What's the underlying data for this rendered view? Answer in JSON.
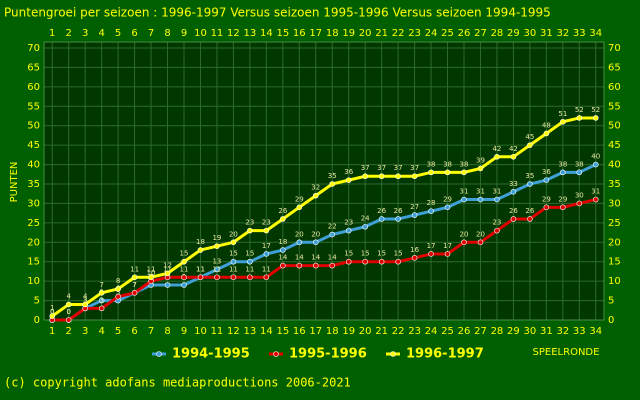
{
  "chart_data": {
    "type": "line",
    "title": "Puntengroei per seizoen : 1996-1997 Versus seizoen 1995-1996 Versus seizoen 1994-1995",
    "y_label": "PUNTEN",
    "x_label": "SPEELRONDE",
    "footer": "(c) copyright adofans mediaproductions 2006-2021",
    "x": [
      1,
      2,
      3,
      4,
      5,
      6,
      7,
      8,
      9,
      10,
      11,
      12,
      13,
      14,
      15,
      16,
      17,
      18,
      19,
      20,
      21,
      22,
      23,
      24,
      25,
      26,
      27,
      28,
      29,
      30,
      31,
      32,
      33,
      34
    ],
    "xlim": [
      0.5,
      34.5
    ],
    "xticks": [
      1,
      2,
      3,
      4,
      5,
      6,
      7,
      8,
      9,
      10,
      11,
      12,
      13,
      14,
      15,
      16,
      17,
      18,
      19,
      20,
      21,
      22,
      23,
      24,
      25,
      26,
      27,
      28,
      29,
      30,
      31,
      32,
      33,
      34
    ],
    "ylim": [
      0,
      70
    ],
    "yticks": [
      0,
      5,
      10,
      15,
      20,
      25,
      30,
      35,
      40,
      45,
      50,
      55,
      60,
      65,
      70
    ],
    "grid": true,
    "series": [
      {
        "name": "1994-1995",
        "color": "#3fa0d8",
        "values": [
          0,
          0,
          3,
          5,
          5,
          7,
          9,
          9,
          9,
          11,
          13,
          15,
          15,
          17,
          18,
          20,
          20,
          22,
          23,
          24,
          26,
          26,
          27,
          28,
          29,
          31,
          31,
          31,
          33,
          35,
          36,
          38,
          38,
          40
        ]
      },
      {
        "name": "1995-1996",
        "color": "#e00000",
        "values": [
          0,
          0,
          3,
          3,
          6,
          7,
          10,
          11,
          11,
          11,
          11,
          11,
          11,
          11,
          14,
          14,
          14,
          14,
          15,
          15,
          15,
          15,
          16,
          17,
          17,
          20,
          20,
          23,
          26,
          26,
          29,
          29,
          30,
          31
        ]
      },
      {
        "name": "1996-1997",
        "color": "#ffff00",
        "values": [
          1,
          4,
          4,
          7,
          8,
          11,
          11,
          12,
          15,
          18,
          19,
          20,
          23,
          23,
          26,
          29,
          32,
          35,
          36,
          37,
          37,
          37,
          37,
          38,
          38,
          38,
          39,
          42,
          42,
          45,
          48,
          51,
          52,
          52
        ]
      }
    ]
  }
}
